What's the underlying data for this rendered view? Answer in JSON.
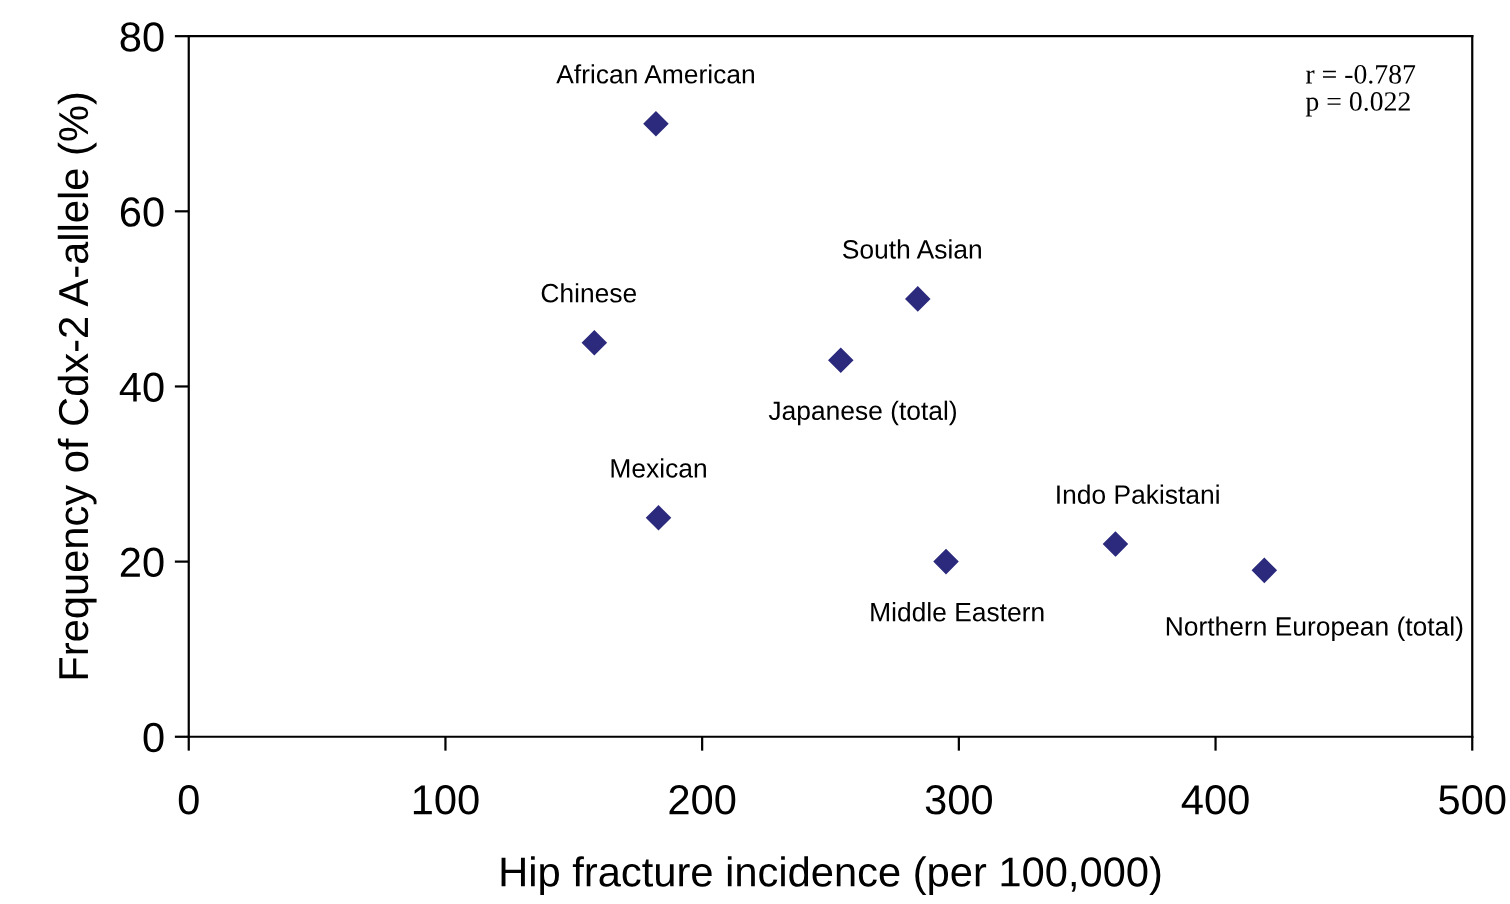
{
  "chart_data": {
    "type": "scatter",
    "xlabel": "Hip fracture incidence (per 100,000)",
    "ylabel": "Frequency of Cdx-2 A-allele (%)",
    "x": [
      182,
      158,
      183,
      254,
      284,
      295,
      361,
      419
    ],
    "series": [
      {
        "color": "#2b2a7c",
        "values": [
          70,
          45,
          25,
          43,
          50,
          20,
          22,
          19
        ]
      }
    ],
    "marker": "diamond",
    "grid": false,
    "legend": false,
    "xlim": [
      0,
      500
    ],
    "xticks": [
      0,
      100,
      200,
      300,
      400,
      500
    ],
    "ylim": [
      0,
      80
    ],
    "yticks": [
      0,
      20,
      40,
      60,
      80
    ],
    "annotations": [
      {
        "text": "African American",
        "x": 182,
        "y": 70
      },
      {
        "text": "Chinese",
        "x": 158,
        "y": 45
      },
      {
        "text": "Mexican",
        "x": 183,
        "y": 25
      },
      {
        "text": "Japanese (total)",
        "x": 254,
        "y": 43
      },
      {
        "text": "South Asian",
        "x": 284,
        "y": 50
      },
      {
        "text": "Middle Eastern",
        "x": 295,
        "y": 20
      },
      {
        "text": "Indo Pakistani",
        "x": 361,
        "y": 22
      },
      {
        "text": "Northern European (total)",
        "x": 419,
        "y": 19
      },
      "r = -0.787\np = 0.022"
    ]
  }
}
